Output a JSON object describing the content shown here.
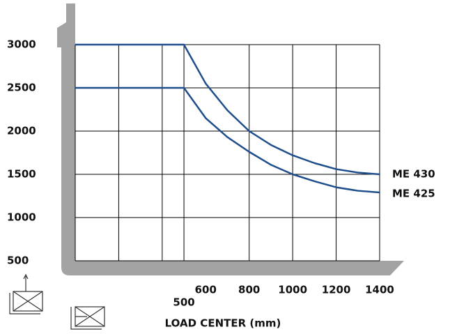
{
  "chart_data": {
    "type": "line",
    "x_label": "LOAD CENTER (mm)",
    "x": [
      0,
      500,
      600,
      700,
      800,
      900,
      1000,
      1100,
      1200,
      1300,
      1400
    ],
    "series": [
      {
        "name": "ME 430",
        "color": "#1f4e8c",
        "values": [
          3000,
          3000,
          2550,
          2240,
          2000,
          1840,
          1720,
          1630,
          1560,
          1520,
          1500
        ]
      },
      {
        "name": "ME 425",
        "color": "#1f4e8c",
        "values": [
          2500,
          2500,
          2150,
          1930,
          1760,
          1610,
          1500,
          1420,
          1350,
          1310,
          1290
        ]
      }
    ],
    "xlim": [
      0,
      1400
    ],
    "xticks": [
      500,
      600,
      800,
      1000,
      1200,
      1400
    ],
    "xgrid": [
      0,
      200,
      400,
      500,
      800,
      1000,
      1200,
      1400
    ],
    "ylim": [
      500,
      3000
    ],
    "yticks": [
      500,
      1000,
      1500,
      2000,
      2500,
      3000
    ],
    "grid": true
  }
}
